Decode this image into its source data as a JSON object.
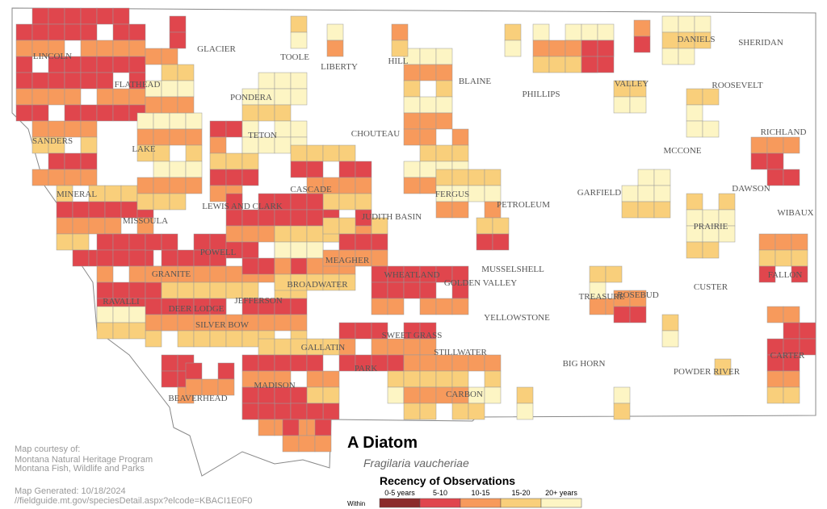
{
  "map": {
    "title": "A Diatom",
    "subtitle": "Fragilaria vaucheriae",
    "counties": [
      "GLACIER",
      "TOOLE",
      "LIBERTY",
      "HILL",
      "BLAINE",
      "PHILLIPS",
      "VALLEY",
      "DANIELS",
      "SHERIDAN",
      "ROOSEVELT",
      "RICHLAND",
      "MCCONE",
      "GARFIELD",
      "DAWSON",
      "WIBAUX",
      "PRAIRIE",
      "FALLON",
      "CUSTER",
      "CARTER",
      "POWDER RIVER",
      "ROSEBUD",
      "TREASURE",
      "BIG HORN",
      "YELLOWSTONE",
      "MUSSELSHELL",
      "PETROLEUM",
      "FERGUS",
      "JUDITH BASIN",
      "CHOUTEAU",
      "CASCADE",
      "TETON",
      "PONDERA",
      "LINCOLN",
      "FLATHEAD",
      "SANDERS",
      "LAKE",
      "MINERAL",
      "MISSOULA",
      "LEWIS AND CLARK",
      "POWELL",
      "GRANITE",
      "RAVALLI",
      "DEER LODGE",
      "SILVER BOW",
      "JEFFERSON",
      "BROADWATER",
      "MEAGHER",
      "WHEATLAND",
      "GOLDEN VALLEY",
      "SWEET GRASS",
      "STILLWATER",
      "PARK",
      "GALLATIN",
      "MADISON",
      "BEAVERHEAD",
      "CARBON"
    ],
    "legend": {
      "title": "Recency of Observations",
      "prefix": "Within",
      "items": [
        {
          "label": "0-5 years",
          "color": "#8b2b2b"
        },
        {
          "label": "5-10",
          "color": "#e0464d"
        },
        {
          "label": "10-15",
          "color": "#f79a5c"
        },
        {
          "label": "15-20",
          "color": "#f9cf7b"
        },
        {
          "label": "20+ years",
          "color": "#fdf5c4"
        }
      ]
    }
  },
  "credits": {
    "lines": [
      "Map courtesy of:",
      "Montana Natural Heritage Program",
      "Montana Fish, Wildlife and Parks"
    ]
  },
  "generated": {
    "date": "Map Generated: 10/18/2024",
    "url": "//fieldguide.mt.gov/speciesDetail.aspx?elcode=KBACI1E0F0"
  }
}
